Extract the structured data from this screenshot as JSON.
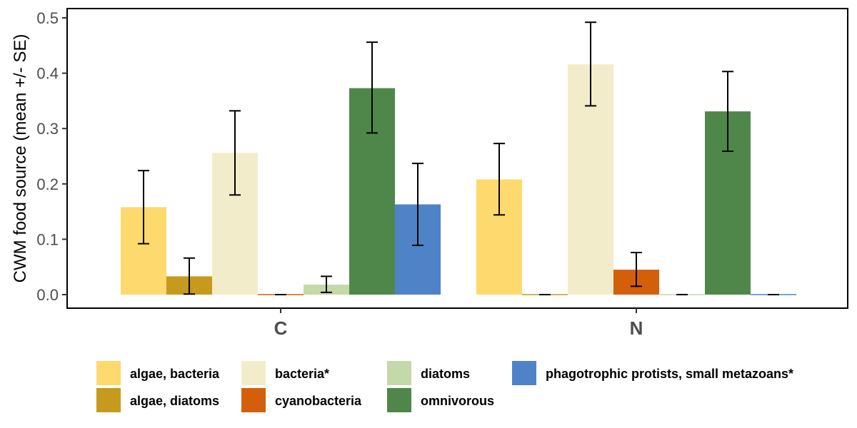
{
  "chart_data": {
    "type": "bar",
    "title": "",
    "xlabel": "",
    "ylabel": "CWM food source (mean +/- SE)",
    "ylim": [
      -0.02,
      0.52
    ],
    "yticks": [
      0.0,
      0.1,
      0.2,
      0.3,
      0.4,
      0.5
    ],
    "ytick_labels": [
      "0.0",
      "0.1",
      "0.2",
      "0.3",
      "0.4",
      "0.5"
    ],
    "categories": [
      "C",
      "N"
    ],
    "grid": false,
    "legend_position": "bottom",
    "series": [
      {
        "name": "algae, bacteria",
        "color": "#FDD96E",
        "values": [
          0.158,
          0.208
        ],
        "se_low": [
          0.092,
          0.144
        ],
        "se_high": [
          0.224,
          0.273
        ]
      },
      {
        "name": "algae, diatoms",
        "color": "#C59A1D",
        "values": [
          0.033,
          0.0
        ],
        "se_low": [
          0.001,
          0.0
        ],
        "se_high": [
          0.066,
          0.0
        ]
      },
      {
        "name": "bacteria*",
        "color": "#F2ECCA",
        "values": [
          0.256,
          0.416
        ],
        "se_low": [
          0.18,
          0.341
        ],
        "se_high": [
          0.332,
          0.492
        ]
      },
      {
        "name": "cyanobacteria",
        "color": "#D45F0A",
        "values": [
          0.0,
          0.045
        ],
        "se_low": [
          0.0,
          0.015
        ],
        "se_high": [
          0.0,
          0.076
        ]
      },
      {
        "name": "diatoms",
        "color": "#C3D9A8",
        "values": [
          0.018,
          0.0
        ],
        "se_low": [
          0.004,
          0.0
        ],
        "se_high": [
          0.033,
          0.0
        ]
      },
      {
        "name": "omnivorous",
        "color": "#4F874B",
        "values": [
          0.373,
          0.331
        ],
        "se_low": [
          0.292,
          0.259
        ],
        "se_high": [
          0.456,
          0.403
        ]
      },
      {
        "name": "phagotrophic protists, small metazoans*",
        "color": "#4F83C8",
        "values": [
          0.163,
          0.0
        ],
        "se_low": [
          0.089,
          0.0
        ],
        "se_high": [
          0.237,
          0.0
        ]
      }
    ]
  }
}
